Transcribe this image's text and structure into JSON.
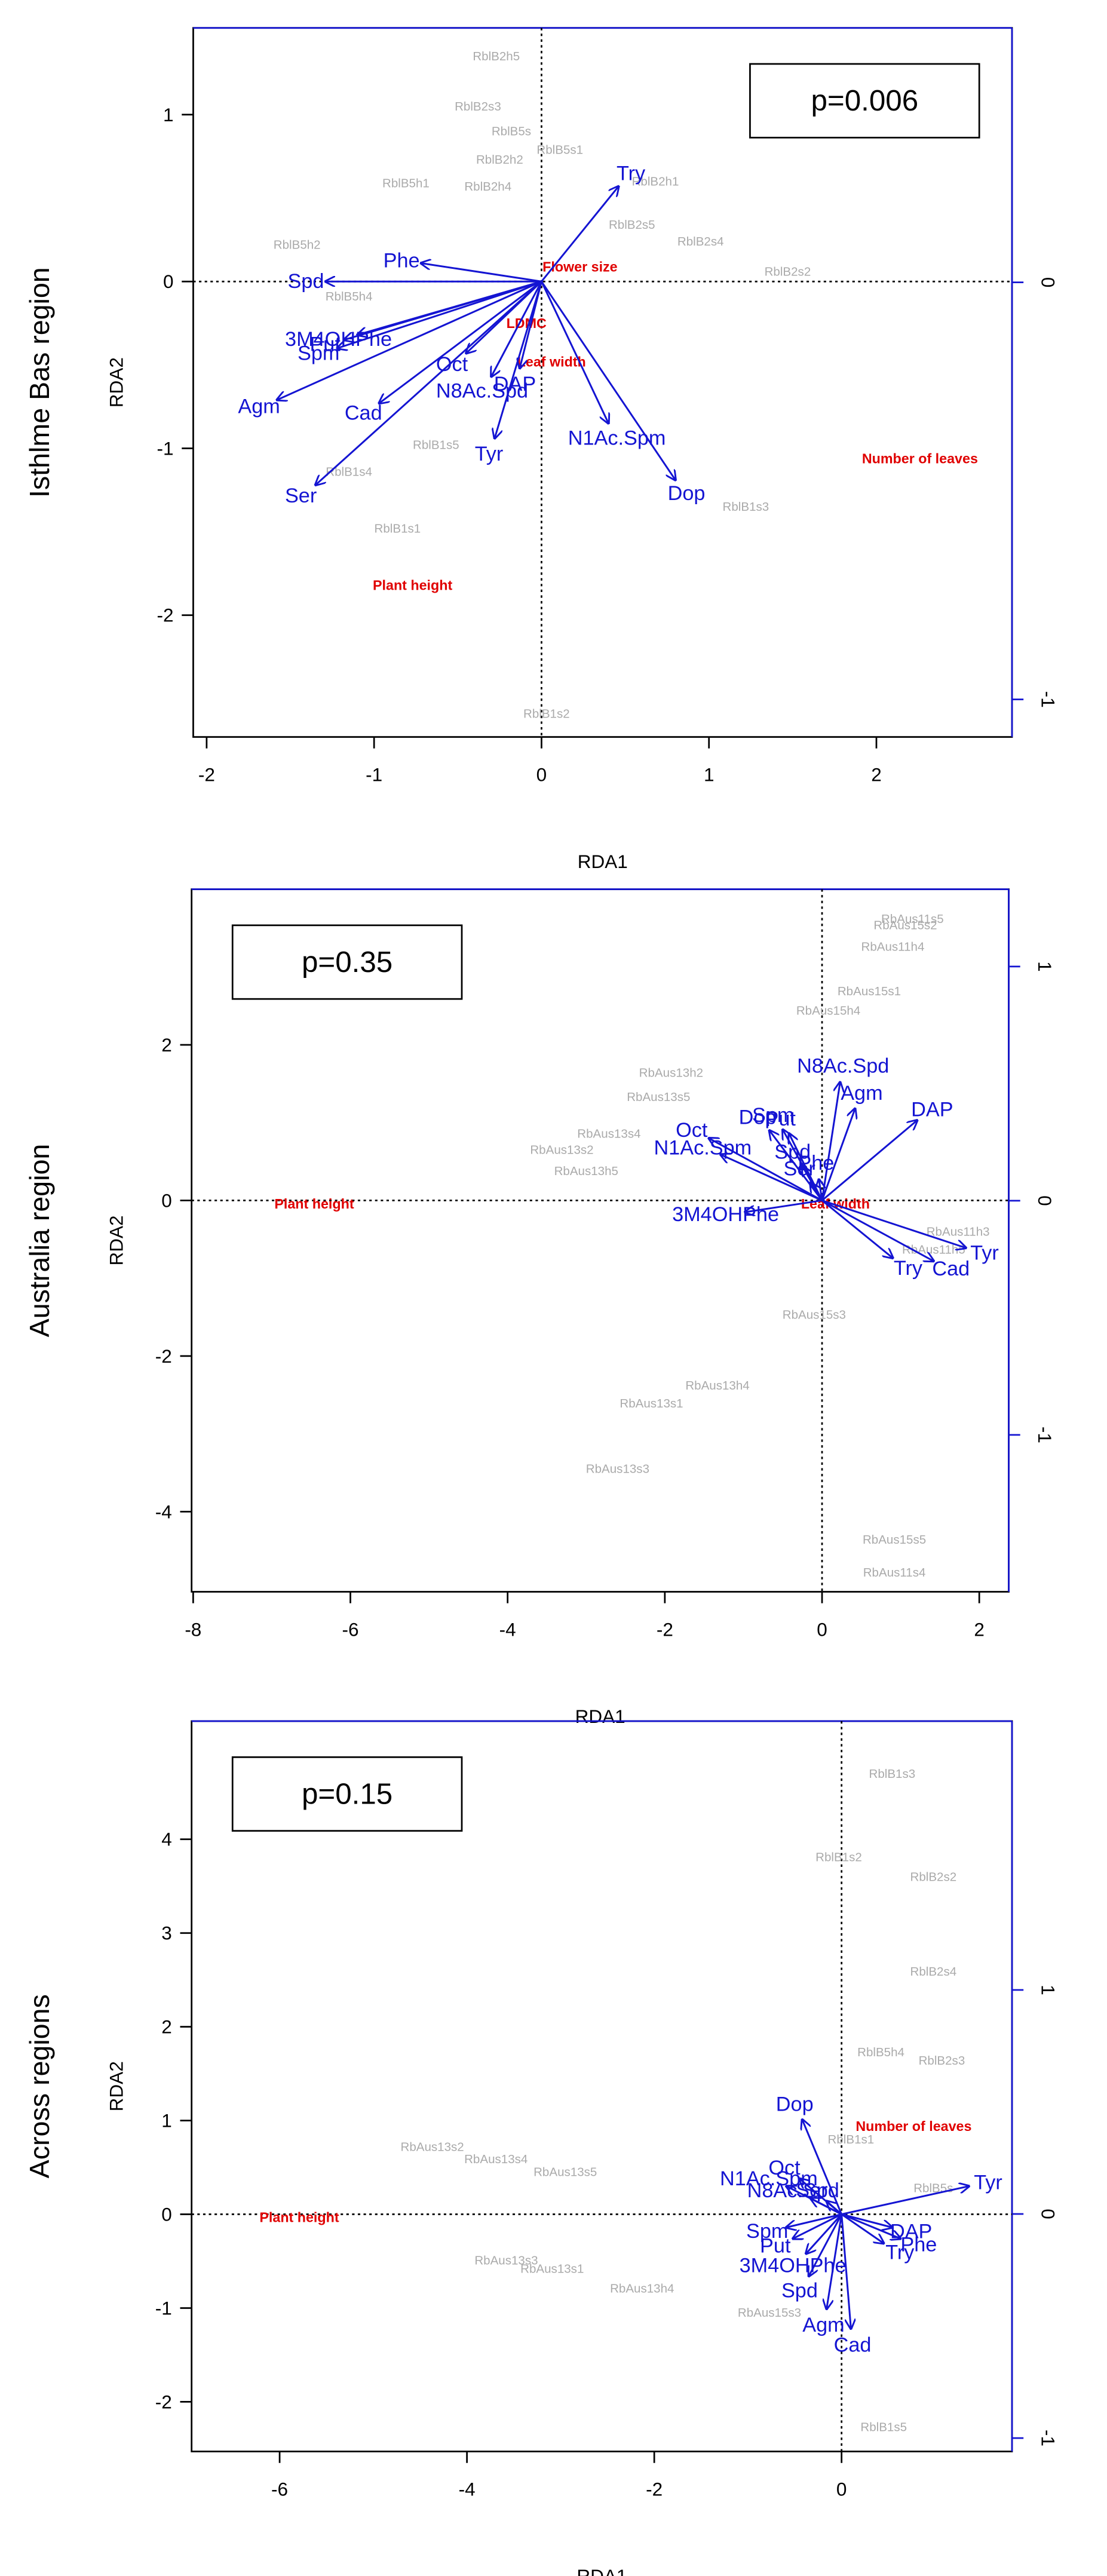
{
  "chart_data": [
    {
      "type": "biplot",
      "panel_label": "Isthlme Bas  region",
      "pvalue_label": "p=0.006",
      "annotation_position": "top right",
      "xlabel": "RDA1",
      "ylabel": "RDA2",
      "xlim": [
        -2.08,
        2.81
      ],
      "ylim": [
        -2.73,
        1.52
      ],
      "xticks": [
        -2,
        -1,
        0,
        1,
        2
      ],
      "yticks": [
        -2,
        -1,
        0,
        1
      ],
      "y2lim": [
        -1.09,
        0.61
      ],
      "y2ticks": [
        -1,
        0
      ],
      "samples": {
        "color": "#aaaaaa",
        "labels": [
          "RblB2h5",
          "RblB2s3",
          "RblB5s",
          "RblB5s1",
          "RblB2h2",
          "RblB5h1",
          "RblB2h4",
          "RblB2h1",
          "RblB2s5",
          "RblB2s4",
          "RblB5h2",
          "RblB5h4",
          "RblB2s2",
          "RblB1s5",
          "RblB1s4",
          "RblB1s1",
          "RblB1s3",
          "RblB1s2"
        ],
        "x": [
          -0.27,
          -0.38,
          -0.18,
          0.11,
          -0.25,
          -0.81,
          -0.32,
          0.68,
          0.54,
          0.95,
          -1.46,
          -1.15,
          1.47,
          -0.63,
          -1.15,
          -0.86,
          1.22,
          0.03
        ],
        "y": [
          1.35,
          1.05,
          0.9,
          0.79,
          0.73,
          0.59,
          0.57,
          0.6,
          0.34,
          0.24,
          0.22,
          -0.09,
          0.06,
          -0.98,
          -1.14,
          -1.48,
          -1.35,
          -2.59
        ]
      },
      "env": {
        "color": "#e00000",
        "labels": [
          "Flower size",
          "LDMC",
          "Leaf width",
          "Number of leaves",
          "Plant height"
        ],
        "x": [
          0.23,
          -0.09,
          0.06,
          2.26,
          -0.77
        ],
        "y": [
          0.09,
          -0.25,
          -0.48,
          -1.06,
          -1.82
        ]
      },
      "arrows": {
        "color": "#1414d2",
        "labels": [
          "Try",
          "Phe",
          "Spd",
          "3M4OHPhe",
          "Put",
          "Spm",
          "Agm",
          "Cad",
          "Ser",
          "Oct",
          "N8Ac.Spd",
          "DAP",
          "Tyr",
          "N1Ac.Spm",
          "Dop"
        ],
        "x": [
          0.46,
          -0.72,
          -1.29,
          -1.1,
          -1.18,
          -1.22,
          -1.58,
          -0.97,
          -1.35,
          -0.45,
          -0.3,
          -0.13,
          -0.28,
          0.4,
          0.8
        ],
        "y": [
          0.57,
          0.11,
          0,
          -0.32,
          -0.35,
          -0.4,
          -0.71,
          -0.73,
          -1.22,
          -0.43,
          -0.57,
          -0.52,
          -0.94,
          -0.85,
          -1.19
        ]
      }
    },
    {
      "type": "biplot",
      "panel_label": "Australia region",
      "pvalue_label": "p=0.35",
      "annotation_position": "top left",
      "xlabel": "RDA1",
      "ylabel": "RDA2",
      "xlim": [
        -8.02,
        2.375
      ],
      "ylim": [
        -5.03,
        4.0
      ],
      "xticks": [
        -8,
        -6,
        -4,
        -2,
        0,
        2
      ],
      "yticks": [
        -4,
        -2,
        0,
        2
      ],
      "y2lim": [
        -1.67,
        1.33
      ],
      "y2ticks": [
        -1,
        0,
        1
      ],
      "samples": {
        "color": "#aaaaaa",
        "labels": [
          "RbAus11s5",
          "RbAus15s2",
          "RbAus11h4",
          "RbAus15s1",
          "RbAus15h4",
          "RbAus13h2",
          "RbAus13s5",
          "RbAus13s4",
          "RbAus13s2",
          "RbAus13h5",
          "RbAus15s3",
          "RbAus13h4",
          "RbAus13s1",
          "RbAus13s3",
          "RbAus15s5",
          "RbAus11s4",
          "RbAus11h3",
          "RbAus11h5"
        ],
        "x": [
          1.15,
          1.06,
          0.9,
          0.6,
          0.08,
          -1.92,
          -2.08,
          -2.71,
          -3.31,
          -3.0,
          -0.1,
          -1.33,
          -2.17,
          -2.6,
          0.92,
          0.92,
          1.73,
          1.42
        ],
        "y": [
          3.62,
          3.54,
          3.26,
          2.69,
          2.44,
          1.64,
          1.33,
          0.86,
          0.65,
          0.38,
          -1.47,
          -2.38,
          -2.61,
          -3.45,
          -4.36,
          -4.78,
          -0.4,
          -0.63
        ]
      },
      "env": {
        "color": "#e00000",
        "labels": [
          "Plant height",
          "Leaf width"
        ],
        "x": [
          -6.46,
          0.17
        ],
        "y": [
          -0.04,
          -0.04
        ]
      },
      "arrows": {
        "color": "#1414d2",
        "labels": [
          "N8Ac.Spd",
          "Agm",
          "DAP",
          "Dop",
          "Spm",
          "Put",
          "Oct",
          "N1Ac.Spm",
          "Spd",
          "Ser",
          "Phe",
          "3M4OHPhe",
          "Try",
          "Cad",
          "Tyr"
        ],
        "x": [
          0.23,
          0.42,
          1.21,
          -0.67,
          -0.5,
          -0.42,
          -1.44,
          -1.29,
          -0.25,
          -0.15,
          -0.04,
          -0.98,
          0.9,
          1.42,
          1.83
        ],
        "y": [
          1.52,
          1.18,
          1.03,
          0.9,
          0.91,
          0.86,
          0.8,
          0.59,
          0.44,
          0.23,
          0.27,
          -0.15,
          -0.74,
          -0.78,
          -0.61
        ]
      }
    },
    {
      "type": "biplot",
      "panel_label": "Across regions",
      "pvalue_label": "p=0.15",
      "annotation_position": "top left",
      "xlabel": "RDA1",
      "ylabel": "RDA2",
      "xlim": [
        -6.94,
        1.82
      ],
      "ylim": [
        -2.53,
        5.26
      ],
      "xticks": [
        -6,
        -4,
        -2,
        0
      ],
      "yticks": [
        -2,
        -1,
        0,
        1,
        2,
        3,
        4
      ],
      "y2lim": [
        -1.06,
        2.2
      ],
      "y2ticks": [
        -1,
        0,
        1
      ],
      "samples": {
        "color": "#aaaaaa",
        "labels": [
          "RblB1s3",
          "RblB1s2",
          "RblB2s2",
          "RblB2s4",
          "RblB5h4",
          "RblB2s3",
          "RblB1s1",
          "RblB5s",
          "RbAus13s2",
          "RbAus13s4",
          "RbAus13s5",
          "RbAus13s3",
          "RbAus13s1",
          "RbAus13h4",
          "RbAus15s3",
          "RblB1s5"
        ],
        "x": [
          0.54,
          -0.03,
          0.98,
          0.98,
          0.42,
          1.07,
          0.1,
          0.98,
          -4.37,
          -3.69,
          -2.95,
          -3.58,
          -3.09,
          -2.13,
          -0.77,
          0.45
        ],
        "y": [
          4.7,
          3.81,
          3.6,
          2.59,
          1.73,
          1.64,
          0.8,
          0.28,
          0.72,
          0.59,
          0.45,
          -0.49,
          -0.58,
          -0.79,
          -1.05,
          -2.27
        ]
      },
      "env": {
        "color": "#e00000",
        "labels": [
          "Number of leaves",
          "Plant height"
        ],
        "x": [
          0.77,
          -5.79
        ],
        "y": [
          0.94,
          -0.03
        ]
      },
      "arrows": {
        "color": "#1414d2",
        "labels": [
          "Dop",
          "Oct",
          "N1Ac.Spm",
          "N8Ac.Spd",
          "Ser",
          "Spm",
          "Put",
          "3M4OHPhe",
          "Spd",
          "Agm",
          "Cad",
          "Tyr",
          "DAP",
          "Phe",
          "Try"
        ],
        "x": [
          -0.42,
          -0.45,
          -0.59,
          -0.33,
          -0.16,
          -0.59,
          -0.52,
          -0.38,
          -0.35,
          -0.16,
          0.1,
          1.36,
          0.54,
          0.63,
          0.45
        ],
        "y": [
          1.01,
          0.38,
          0.3,
          0.17,
          0.14,
          -0.14,
          -0.26,
          -0.42,
          -0.66,
          -1.01,
          -1.22,
          0.3,
          -0.14,
          -0.26,
          -0.31
        ]
      }
    }
  ]
}
